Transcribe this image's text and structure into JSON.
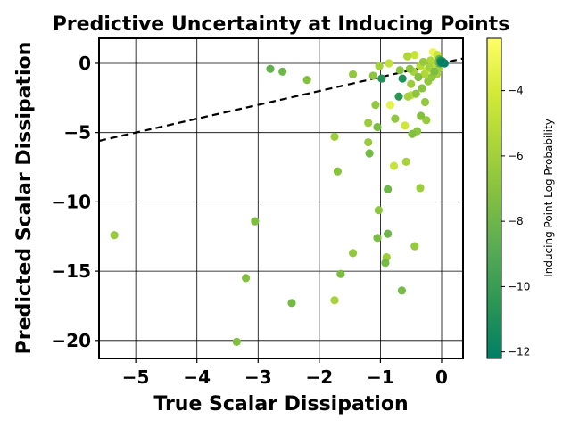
{
  "chart_data": {
    "type": "scatter",
    "title": "Predictive Uncertainty at Inducing Points",
    "xlabel": "True Scalar Dissipation",
    "ylabel": "Predicted Scalar Dissipation",
    "xlim": [
      -5.6,
      0.35
    ],
    "ylim": [
      -21.3,
      1.8
    ],
    "xticks": [
      -5,
      -4,
      -3,
      -2,
      -1,
      0
    ],
    "yticks": [
      -20,
      -15,
      -10,
      -5,
      0
    ],
    "xtick_labels": [
      "−5",
      "−4",
      "−3",
      "−2",
      "−1",
      "0"
    ],
    "ytick_labels": [
      "−20",
      "−15",
      "−10",
      "−5",
      "0"
    ],
    "grid": true,
    "reference_line": {
      "style": "dashed",
      "color": "#000000",
      "x": [
        -5.6,
        0.35
      ],
      "y": [
        -5.6,
        0.35
      ]
    },
    "colorbar": {
      "label": "Inducing Point Log Probability",
      "range": [
        -12.2,
        -2.4
      ],
      "ticks": [
        -12,
        -10,
        -8,
        -6,
        -4
      ],
      "tick_labels": [
        "−12",
        "−10",
        "−8",
        "−6",
        "−4"
      ],
      "colormap": [
        "#007f66",
        "#2a9554",
        "#55aa55",
        "#80bf40",
        "#aad53a",
        "#d5ea38",
        "#ffff66"
      ]
    },
    "points": [
      {
        "x": -5.35,
        "y": -12.4,
        "c": -6.5
      },
      {
        "x": -3.35,
        "y": -20.1,
        "c": -7.2
      },
      {
        "x": -3.2,
        "y": -15.5,
        "c": -7.2
      },
      {
        "x": -3.05,
        "y": -11.4,
        "c": -7.4
      },
      {
        "x": -2.8,
        "y": -0.4,
        "c": -8.4
      },
      {
        "x": -2.6,
        "y": -0.6,
        "c": -8.0
      },
      {
        "x": -2.45,
        "y": -17.3,
        "c": -7.7
      },
      {
        "x": -2.2,
        "y": -1.2,
        "c": -7.2
      },
      {
        "x": -1.75,
        "y": -17.1,
        "c": -5.8
      },
      {
        "x": -1.75,
        "y": -5.3,
        "c": -6.2
      },
      {
        "x": -1.7,
        "y": -7.8,
        "c": -7.0
      },
      {
        "x": -1.65,
        "y": -15.2,
        "c": -7.4
      },
      {
        "x": -1.45,
        "y": -13.7,
        "c": -6.6
      },
      {
        "x": -1.45,
        "y": -0.8,
        "c": -6.6
      },
      {
        "x": -1.2,
        "y": -4.3,
        "c": -6.3
      },
      {
        "x": -1.2,
        "y": -5.7,
        "c": -6.4
      },
      {
        "x": -1.18,
        "y": -6.5,
        "c": -7.8
      },
      {
        "x": -1.12,
        "y": -0.9,
        "c": -6.8
      },
      {
        "x": -1.08,
        "y": -3.0,
        "c": -6.6
      },
      {
        "x": -1.05,
        "y": -4.6,
        "c": -7.5
      },
      {
        "x": -1.05,
        "y": -12.6,
        "c": -7.5
      },
      {
        "x": -1.03,
        "y": -10.6,
        "c": -6.8
      },
      {
        "x": -1.02,
        "y": -0.2,
        "c": -6.0
      },
      {
        "x": -0.98,
        "y": -1.1,
        "c": -10.8
      },
      {
        "x": -0.92,
        "y": -14.4,
        "c": -7.7
      },
      {
        "x": -0.9,
        "y": -14.0,
        "c": -6.2
      },
      {
        "x": -0.88,
        "y": -12.3,
        "c": -8.0
      },
      {
        "x": -0.88,
        "y": -9.1,
        "c": -8.0
      },
      {
        "x": -0.86,
        "y": 0.0,
        "c": -4.8
      },
      {
        "x": -0.84,
        "y": -3.0,
        "c": -3.4
      },
      {
        "x": -0.78,
        "y": -7.4,
        "c": -4.6
      },
      {
        "x": -0.76,
        "y": -4.0,
        "c": -6.7
      },
      {
        "x": -0.7,
        "y": -2.4,
        "c": -10.6
      },
      {
        "x": -0.68,
        "y": -0.5,
        "c": -7.0
      },
      {
        "x": -0.65,
        "y": -16.4,
        "c": -7.7
      },
      {
        "x": -0.64,
        "y": -1.1,
        "c": -11.0
      },
      {
        "x": -0.6,
        "y": -4.5,
        "c": -4.3
      },
      {
        "x": -0.58,
        "y": -7.1,
        "c": -5.8
      },
      {
        "x": -0.56,
        "y": 0.5,
        "c": -5.5
      },
      {
        "x": -0.55,
        "y": -2.4,
        "c": -5.8
      },
      {
        "x": -0.52,
        "y": -0.4,
        "c": -6.8
      },
      {
        "x": -0.5,
        "y": -1.5,
        "c": -6.3
      },
      {
        "x": -0.5,
        "y": -2.3,
        "c": -4.8
      },
      {
        "x": -0.48,
        "y": -5.1,
        "c": -7.2
      },
      {
        "x": -0.46,
        "y": -0.6,
        "c": -5.8
      },
      {
        "x": -0.44,
        "y": -13.2,
        "c": -6.5
      },
      {
        "x": -0.44,
        "y": 0.6,
        "c": -4.6
      },
      {
        "x": -0.42,
        "y": -2.2,
        "c": -6.8
      },
      {
        "x": -0.4,
        "y": -4.9,
        "c": -6.8
      },
      {
        "x": -0.38,
        "y": -1.0,
        "c": -7.2
      },
      {
        "x": -0.35,
        "y": -9.0,
        "c": -6.2
      },
      {
        "x": -0.35,
        "y": -0.2,
        "c": -5.2
      },
      {
        "x": -0.34,
        "y": -3.8,
        "c": -7.2
      },
      {
        "x": -0.32,
        "y": -1.8,
        "c": -7.0
      },
      {
        "x": -0.3,
        "y": 0.1,
        "c": -6.4
      },
      {
        "x": -0.28,
        "y": -0.8,
        "c": -5.4
      },
      {
        "x": -0.27,
        "y": -2.8,
        "c": -6.6
      },
      {
        "x": -0.25,
        "y": -4.1,
        "c": -6.5
      },
      {
        "x": -0.24,
        "y": -0.5,
        "c": -4.5
      },
      {
        "x": -0.22,
        "y": -1.3,
        "c": -6.6
      },
      {
        "x": -0.2,
        "y": -0.3,
        "c": -6.0
      },
      {
        "x": -0.18,
        "y": 0.2,
        "c": -5.6
      },
      {
        "x": -0.16,
        "y": -1.0,
        "c": -6.7
      },
      {
        "x": -0.14,
        "y": 0.8,
        "c": -3.2
      },
      {
        "x": -0.12,
        "y": -0.6,
        "c": -7.4
      },
      {
        "x": -0.1,
        "y": 0.0,
        "c": -5.0
      },
      {
        "x": -0.08,
        "y": -0.8,
        "c": -5.8
      },
      {
        "x": -0.07,
        "y": 0.6,
        "c": -4.5
      },
      {
        "x": -0.06,
        "y": 0.1,
        "c": -6.3
      },
      {
        "x": -0.05,
        "y": -0.4,
        "c": -6.0
      },
      {
        "x": -0.04,
        "y": 0.3,
        "c": -7.8
      },
      {
        "x": -0.03,
        "y": 0.0,
        "c": -9.0
      },
      {
        "x": -0.02,
        "y": 0.2,
        "c": -10.6
      },
      {
        "x": -0.01,
        "y": 0.1,
        "c": -11.5
      },
      {
        "x": 0.0,
        "y": 0.05,
        "c": -12.0
      },
      {
        "x": 0.01,
        "y": 0.15,
        "c": -11.0
      },
      {
        "x": 0.02,
        "y": 0.1,
        "c": -8.2
      },
      {
        "x": 0.03,
        "y": 0.02,
        "c": -12.1
      },
      {
        "x": 0.05,
        "y": 0.0,
        "c": -11.8
      }
    ]
  }
}
